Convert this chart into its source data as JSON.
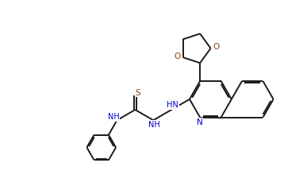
{
  "bg_color": "#ffffff",
  "line_color": "#1a1a1a",
  "N_color": "#0000cc",
  "O_color": "#8b4513",
  "S_color": "#8b4513",
  "line_width": 1.4,
  "figsize": [
    3.87,
    2.44
  ],
  "dpi": 100,
  "xlim": [
    0,
    10
  ],
  "ylim": [
    0,
    6.5
  ]
}
